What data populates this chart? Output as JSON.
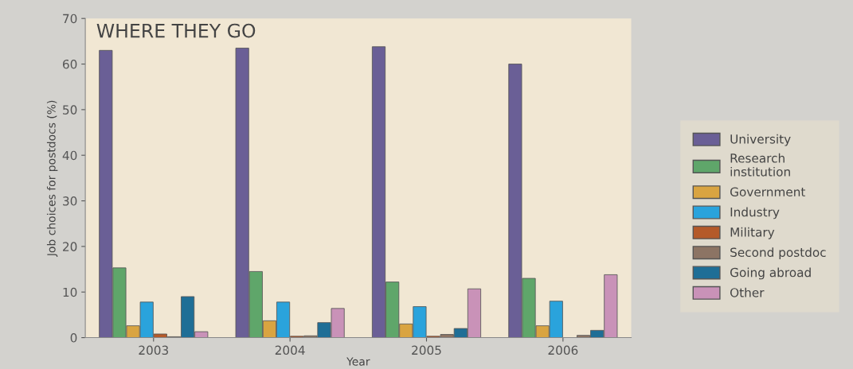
{
  "chart_data": {
    "type": "bar",
    "title": "WHERE THEY GO",
    "xlabel": "Year",
    "ylabel": "Job choices for postdocs (%)",
    "categories": [
      "2003",
      "2004",
      "2005",
      "2006"
    ],
    "series": [
      {
        "name": "University",
        "color": "#6a5f96",
        "values": [
          63,
          63.5,
          63.8,
          60
        ]
      },
      {
        "name": "Research\ninstitution",
        "color": "#5fa66a",
        "values": [
          15.3,
          14.5,
          12.2,
          13
        ]
      },
      {
        "name": "Government",
        "color": "#d9a441",
        "values": [
          2.6,
          3.7,
          3.0,
          2.6
        ]
      },
      {
        "name": "Industry",
        "color": "#2aa3dc",
        "values": [
          7.8,
          7.8,
          6.8,
          8
        ]
      },
      {
        "name": "Military",
        "color": "#b45a2a",
        "values": [
          0.8,
          0.3,
          0.3,
          null
        ]
      },
      {
        "name": "Second postdoc",
        "color": "#8c7464",
        "values": [
          0.2,
          0.4,
          0.7,
          0.5
        ]
      },
      {
        "name": "Going abroad",
        "color": "#1f6e96",
        "values": [
          9.0,
          3.3,
          2.0,
          1.6
        ]
      },
      {
        "name": "Other",
        "color": "#c992b8",
        "values": [
          1.3,
          6.4,
          10.7,
          13.8
        ]
      }
    ],
    "ylim": [
      0,
      70
    ],
    "yticks": [
      0,
      10,
      20,
      30,
      40,
      50,
      60,
      70
    ],
    "legend": "right",
    "grid": false
  }
}
